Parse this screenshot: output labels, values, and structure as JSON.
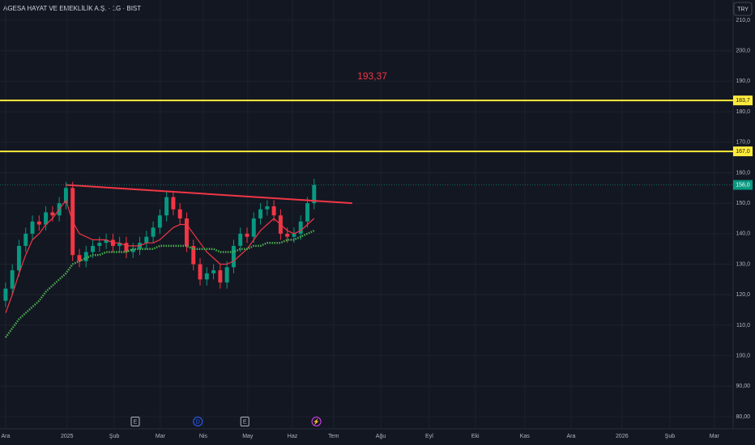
{
  "chart_data": {
    "type": "candlestick",
    "title": "AGESA HAYAT VE EMEKLİLİK A.Ş. · 1G · BIST",
    "currency": "TRY",
    "annotation": {
      "text": "193,37",
      "x": 164,
      "y": 191.5
    },
    "x": [
      0,
      3,
      6,
      9,
      12,
      15,
      18,
      21,
      24,
      27,
      30,
      33,
      36,
      39,
      42,
      45,
      48,
      51,
      54,
      57,
      60,
      63,
      66,
      69,
      72,
      75,
      78,
      81,
      84,
      87,
      90,
      93,
      96,
      99,
      102,
      105,
      108,
      111,
      114,
      117,
      120,
      123,
      126,
      129,
      132,
      135,
      138
    ],
    "open": [
      118,
      122,
      128,
      136,
      140,
      144,
      143,
      147,
      146,
      150,
      155,
      133,
      131,
      134,
      136,
      137,
      138,
      136,
      137,
      134,
      135,
      137,
      139,
      142,
      146,
      152,
      148,
      145,
      136,
      130,
      125,
      127,
      128,
      124,
      129,
      136,
      140,
      139,
      145,
      148,
      149,
      146,
      140,
      139,
      140,
      144,
      150
    ],
    "high": [
      124,
      130,
      138,
      142,
      146,
      146,
      149,
      149,
      152,
      157,
      157,
      135,
      136,
      138,
      139,
      140,
      140,
      139,
      139,
      137,
      139,
      141,
      144,
      148,
      154,
      154,
      150,
      147,
      138,
      132,
      129,
      130,
      130,
      131,
      138,
      142,
      142,
      147,
      150,
      151,
      151,
      148,
      142,
      142,
      146,
      152,
      158
    ],
    "low": [
      116,
      120,
      126,
      134,
      138,
      141,
      141,
      144,
      144,
      148,
      131,
      129,
      129,
      132,
      134,
      135,
      134,
      134,
      132,
      132,
      133,
      135,
      137,
      140,
      144,
      146,
      143,
      134,
      128,
      123,
      123,
      125,
      122,
      122,
      127,
      134,
      137,
      137,
      143,
      146,
      144,
      138,
      137,
      137,
      138,
      142,
      148
    ],
    "close": [
      122,
      128,
      136,
      140,
      144,
      143,
      147,
      146,
      150,
      155,
      133,
      131,
      134,
      136,
      137,
      138,
      136,
      137,
      134,
      135,
      137,
      139,
      142,
      146,
      152,
      148,
      145,
      136,
      130,
      125,
      127,
      128,
      124,
      129,
      136,
      140,
      139,
      145,
      148,
      149,
      146,
      140,
      139,
      140,
      144,
      150,
      156
    ],
    "up_color": "#089981",
    "down_color": "#f23645",
    "series": [
      {
        "color": "#f23645",
        "style": "solid",
        "values": [
          114,
          120,
          127,
          133,
          138,
          140,
          143,
          145,
          148,
          151,
          144,
          140,
          139,
          138,
          138,
          138,
          137,
          137,
          136,
          136,
          136,
          137,
          137,
          138,
          140,
          142,
          143,
          143,
          140,
          137,
          134,
          132,
          130,
          130,
          131,
          133,
          135,
          138,
          141,
          143,
          145,
          143,
          141,
          140,
          141,
          143,
          145
        ]
      },
      {
        "color": "#4caf50",
        "style": "dotted",
        "values": [
          106,
          109,
          112,
          114,
          116,
          118,
          121,
          123,
          125,
          127,
          130,
          131,
          132,
          133,
          133,
          134,
          134,
          134,
          134,
          135,
          135,
          135,
          135,
          136,
          136,
          136,
          136,
          136,
          135,
          135,
          135,
          135,
          134,
          134,
          134,
          135,
          135,
          136,
          136,
          137,
          137,
          137,
          138,
          138,
          139,
          140,
          141
        ]
      }
    ],
    "trendline": {
      "color": "#f23645",
      "x": [
        27,
        155
      ],
      "y": [
        156,
        150
      ]
    },
    "levels": [
      {
        "value": 183.7,
        "label": "183,7",
        "color": "#ffeb3b"
      },
      {
        "value": 167,
        "label": "167,0",
        "color": "#ffeb3b"
      }
    ],
    "last_price": {
      "value": 156,
      "label": "156,0",
      "color": "#089981"
    },
    "events": [
      {
        "x": 58,
        "label": "E"
      },
      {
        "x": 86,
        "label": "D"
      },
      {
        "x": 107,
        "label": "E"
      },
      {
        "x": 139,
        "label": "⚡"
      }
    ],
    "xlim": [
      -2.5,
      325.4
    ],
    "xticks": [
      {
        "value": 0,
        "label": "Ara"
      },
      {
        "value": 27.5,
        "label": "2025"
      },
      {
        "value": 48.6,
        "label": "Şub"
      },
      {
        "value": 69.2,
        "label": "Mar"
      },
      {
        "value": 88.4,
        "label": "Nis"
      },
      {
        "value": 108.3,
        "label": "May"
      },
      {
        "value": 128.3,
        "label": "Haz"
      },
      {
        "value": 146.7,
        "label": "Tem"
      },
      {
        "value": 167.8,
        "label": "Ağu"
      },
      {
        "value": 189.5,
        "label": "Eyl"
      },
      {
        "value": 210.1,
        "label": "Eki"
      },
      {
        "value": 232.2,
        "label": "Kas"
      },
      {
        "value": 252.9,
        "label": "Ara"
      },
      {
        "value": 275.7,
        "label": "2026"
      },
      {
        "value": 297.1,
        "label": "Şub"
      },
      {
        "value": 317,
        "label": "Mar"
      }
    ],
    "ylim": [
      80,
      210
    ],
    "yticks": [
      {
        "value": 80,
        "label": "80,00"
      },
      {
        "value": 90,
        "label": "90,00"
      },
      {
        "value": 100,
        "label": "100,0"
      },
      {
        "value": 110,
        "label": "110,0"
      },
      {
        "value": 120,
        "label": "120,0"
      },
      {
        "value": 130,
        "label": "130,0"
      },
      {
        "value": 140,
        "label": "140,0"
      },
      {
        "value": 150,
        "label": "150,0"
      },
      {
        "value": 160,
        "label": "160,0"
      },
      {
        "value": 170,
        "label": "170,0"
      },
      {
        "value": 180,
        "label": "180,0"
      },
      {
        "value": 190,
        "label": "190,0"
      },
      {
        "value": 200,
        "label": "200,0"
      },
      {
        "value": 210,
        "label": "210,0"
      }
    ],
    "grid": true
  }
}
